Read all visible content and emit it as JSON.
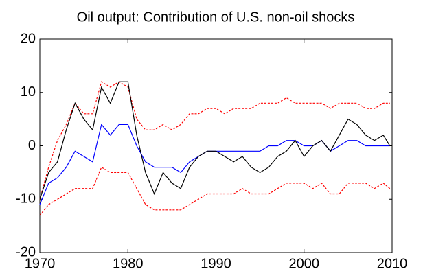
{
  "chart_data": {
    "type": "line",
    "title": "Oil output: Contribution of U.S. non-oil shocks",
    "x": [
      1970,
      1971,
      1972,
      1973,
      1974,
      1975,
      1976,
      1977,
      1978,
      1979,
      1980,
      1981,
      1982,
      1983,
      1984,
      1985,
      1986,
      1987,
      1988,
      1989,
      1990,
      1991,
      1992,
      1993,
      1994,
      1995,
      1996,
      1997,
      1998,
      1999,
      2000,
      2001,
      2002,
      2003,
      2004,
      2005,
      2006,
      2007,
      2008,
      2009,
      2009.75
    ],
    "series": [
      {
        "color": "#ff0000",
        "dashed": true,
        "values": [
          -10,
          -4,
          1,
          4,
          8,
          6,
          6,
          12,
          11,
          12,
          11,
          5,
          3,
          3,
          4,
          3,
          4,
          6,
          6,
          7,
          7,
          6,
          7,
          7,
          7,
          8,
          8,
          8,
          9,
          8,
          8,
          8,
          8,
          7,
          8,
          8,
          8,
          7,
          7,
          8,
          8
        ]
      },
      {
        "color": "#ff0000",
        "dashed": true,
        "values": [
          -13,
          -11,
          -10,
          -9,
          -8,
          -8,
          -8,
          -4,
          -5,
          -5,
          -5,
          -8,
          -11,
          -12,
          -12,
          -12,
          -12,
          -11,
          -10,
          -9,
          -9,
          -9,
          -9,
          -8,
          -9,
          -9,
          -9,
          -8,
          -7,
          -7,
          -7,
          -8,
          -7,
          -9,
          -9,
          -7,
          -7,
          -7,
          -8,
          -7,
          -8
        ]
      },
      {
        "color": "#0000ff",
        "dashed": false,
        "values": [
          -11,
          -7,
          -6,
          -4,
          -1,
          -2,
          -3,
          4,
          2,
          4,
          4,
          0,
          -3,
          -4,
          -4,
          -4,
          -5,
          -3,
          -2,
          -1,
          -1,
          -1,
          -1,
          -1,
          -1,
          -1,
          0,
          0,
          1,
          1,
          0,
          0,
          1,
          -1,
          0,
          1,
          1,
          0,
          0,
          0,
          0
        ]
      },
      {
        "color": "#000000",
        "dashed": false,
        "values": [
          -10,
          -5,
          -3,
          3,
          8,
          5,
          3,
          11,
          8,
          12,
          12,
          2,
          -5,
          -9,
          -5,
          -7,
          -8,
          -4,
          -2,
          -1,
          -1,
          -2,
          -3,
          -2,
          -4,
          -5,
          -4,
          -2,
          -1,
          1,
          -2,
          0,
          1,
          -1,
          2,
          5,
          4,
          2,
          1,
          2,
          0
        ]
      }
    ],
    "xlim": [
      1970,
      2010
    ],
    "xticks": [
      1970,
      1980,
      1990,
      2000,
      2010
    ],
    "ylim": [
      -20,
      20
    ],
    "yticks": [
      -20,
      -10,
      0,
      10,
      20
    ]
  }
}
